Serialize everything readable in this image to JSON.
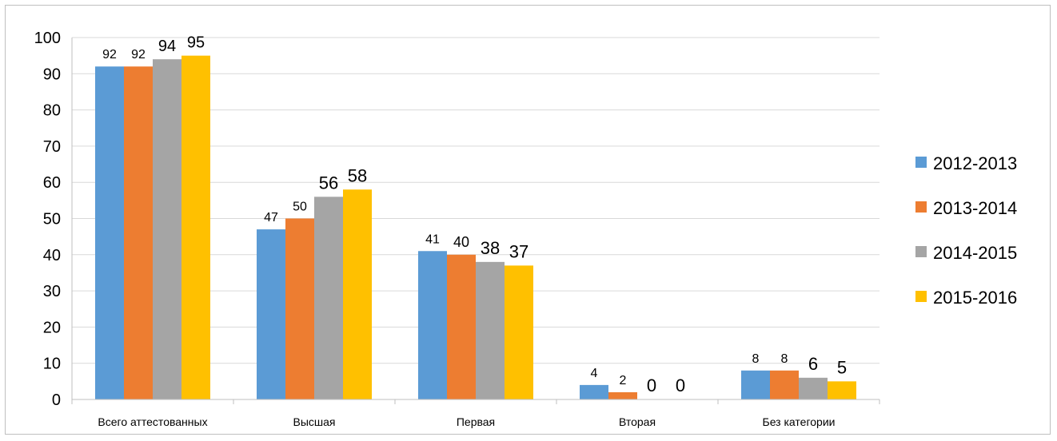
{
  "chart_data": {
    "type": "bar",
    "categories": [
      "Всего аттестованных",
      "Высшая",
      "Первая",
      "Вторая",
      "Без категории"
    ],
    "series": [
      {
        "name": "2012-2013",
        "color": "#5B9BD5",
        "values": [
          92,
          47,
          41,
          4,
          8
        ]
      },
      {
        "name": "2013-2014",
        "color": "#ED7D31",
        "values": [
          92,
          50,
          40,
          2,
          8
        ]
      },
      {
        "name": "2014-2015",
        "color": "#A5A5A5",
        "values": [
          94,
          56,
          38,
          0,
          6
        ]
      },
      {
        "name": "2015-2016",
        "color": "#FFC000",
        "values": [
          95,
          58,
          37,
          0,
          5
        ]
      }
    ],
    "yticks": [
      0,
      10,
      20,
      30,
      40,
      50,
      60,
      70,
      80,
      90,
      100
    ],
    "ylim": [
      0,
      100
    ],
    "grid": true,
    "legend": "right",
    "data_labels": true
  }
}
